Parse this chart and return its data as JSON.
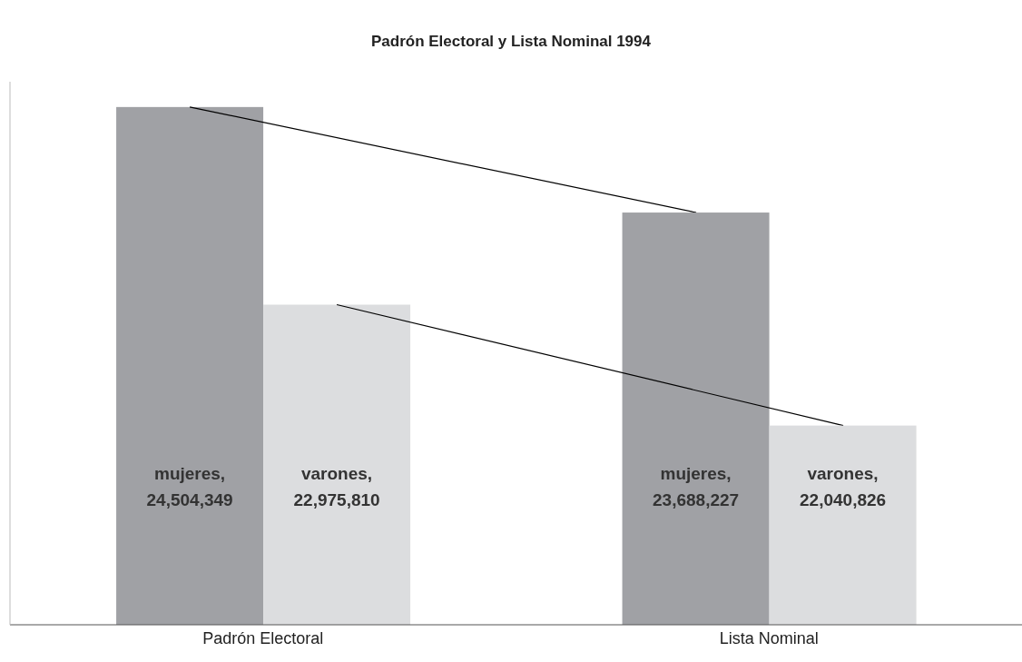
{
  "chart_data": {
    "type": "bar",
    "title": "Padrón Electoral y Lista Nominal 1994",
    "categories": [
      "Padrón Electoral",
      "Lista Nominal"
    ],
    "series": [
      {
        "name": "mujeres,",
        "color": "#a0a1a5",
        "values": [
          24504349,
          23688227
        ],
        "value_labels": [
          "24,504,349",
          "23,688,227"
        ]
      },
      {
        "name": "varones,",
        "color": "#dcdddf",
        "values": [
          22975810,
          22040826
        ],
        "value_labels": [
          "22,975,810",
          "22,040,826"
        ]
      }
    ],
    "ylim": [
      20500000,
      24700000
    ],
    "tick_labels": "x"
  }
}
